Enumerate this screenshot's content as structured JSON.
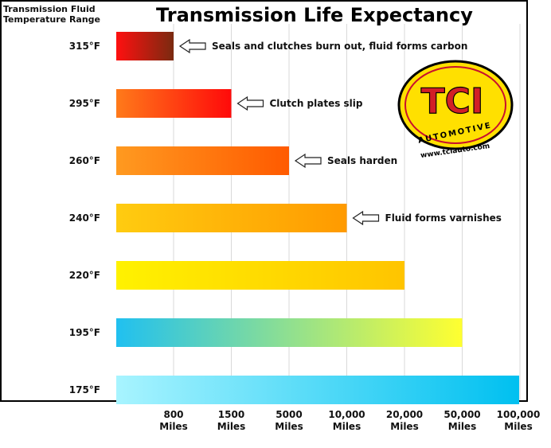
{
  "chart_data": {
    "type": "bar",
    "orientation": "horizontal",
    "title": "Transmission Life Expectancy",
    "ylabel_line1": "Transmission Fluid",
    "ylabel_line2": "Temperature Range",
    "categories": [
      "315°F",
      "295°F",
      "260°F",
      "240°F",
      "220°F",
      "195°F",
      "175°F"
    ],
    "x_ticks": [
      {
        "top": "800",
        "bottom": "Miles"
      },
      {
        "top": "1500",
        "bottom": "Miles"
      },
      {
        "top": "5000",
        "bottom": "Miles"
      },
      {
        "top": "10,000",
        "bottom": "Miles"
      },
      {
        "top": "20,000",
        "bottom": "Miles"
      },
      {
        "top": "50,000",
        "bottom": "Miles"
      },
      {
        "top": "100,000",
        "bottom": "Miles"
      }
    ],
    "values": [
      800,
      1500,
      5000,
      10000,
      20000,
      50000,
      100000
    ],
    "x_unit": "Miles",
    "scale": "ordinal (equally spaced ticks)",
    "grid": "vertical lines at ticks",
    "annotations": [
      {
        "category": "315°F",
        "text": "Seals and clutches burn out, fluid forms carbon"
      },
      {
        "category": "295°F",
        "text": "Clutch plates slip"
      },
      {
        "category": "260°F",
        "text": "Seals harden"
      },
      {
        "category": "240°F",
        "text": "Fluid forms varnishes"
      }
    ],
    "bar_colors": [
      [
        "#ff1010",
        "#7a2a10"
      ],
      [
        "#ff7a1a",
        "#ff0a0a"
      ],
      [
        "#ff9a20",
        "#ff5a00"
      ],
      [
        "#ffcc10",
        "#ff9a00"
      ],
      [
        "#fff200",
        "#ffc400"
      ],
      [
        "#20c0f0",
        "#ffff30"
      ],
      [
        "#a8f4ff",
        "#00c0f0"
      ]
    ]
  },
  "logo": {
    "brand": "TCI",
    "tagline": "AUTOMOTIVE",
    "website": "www.tciauto.com"
  }
}
